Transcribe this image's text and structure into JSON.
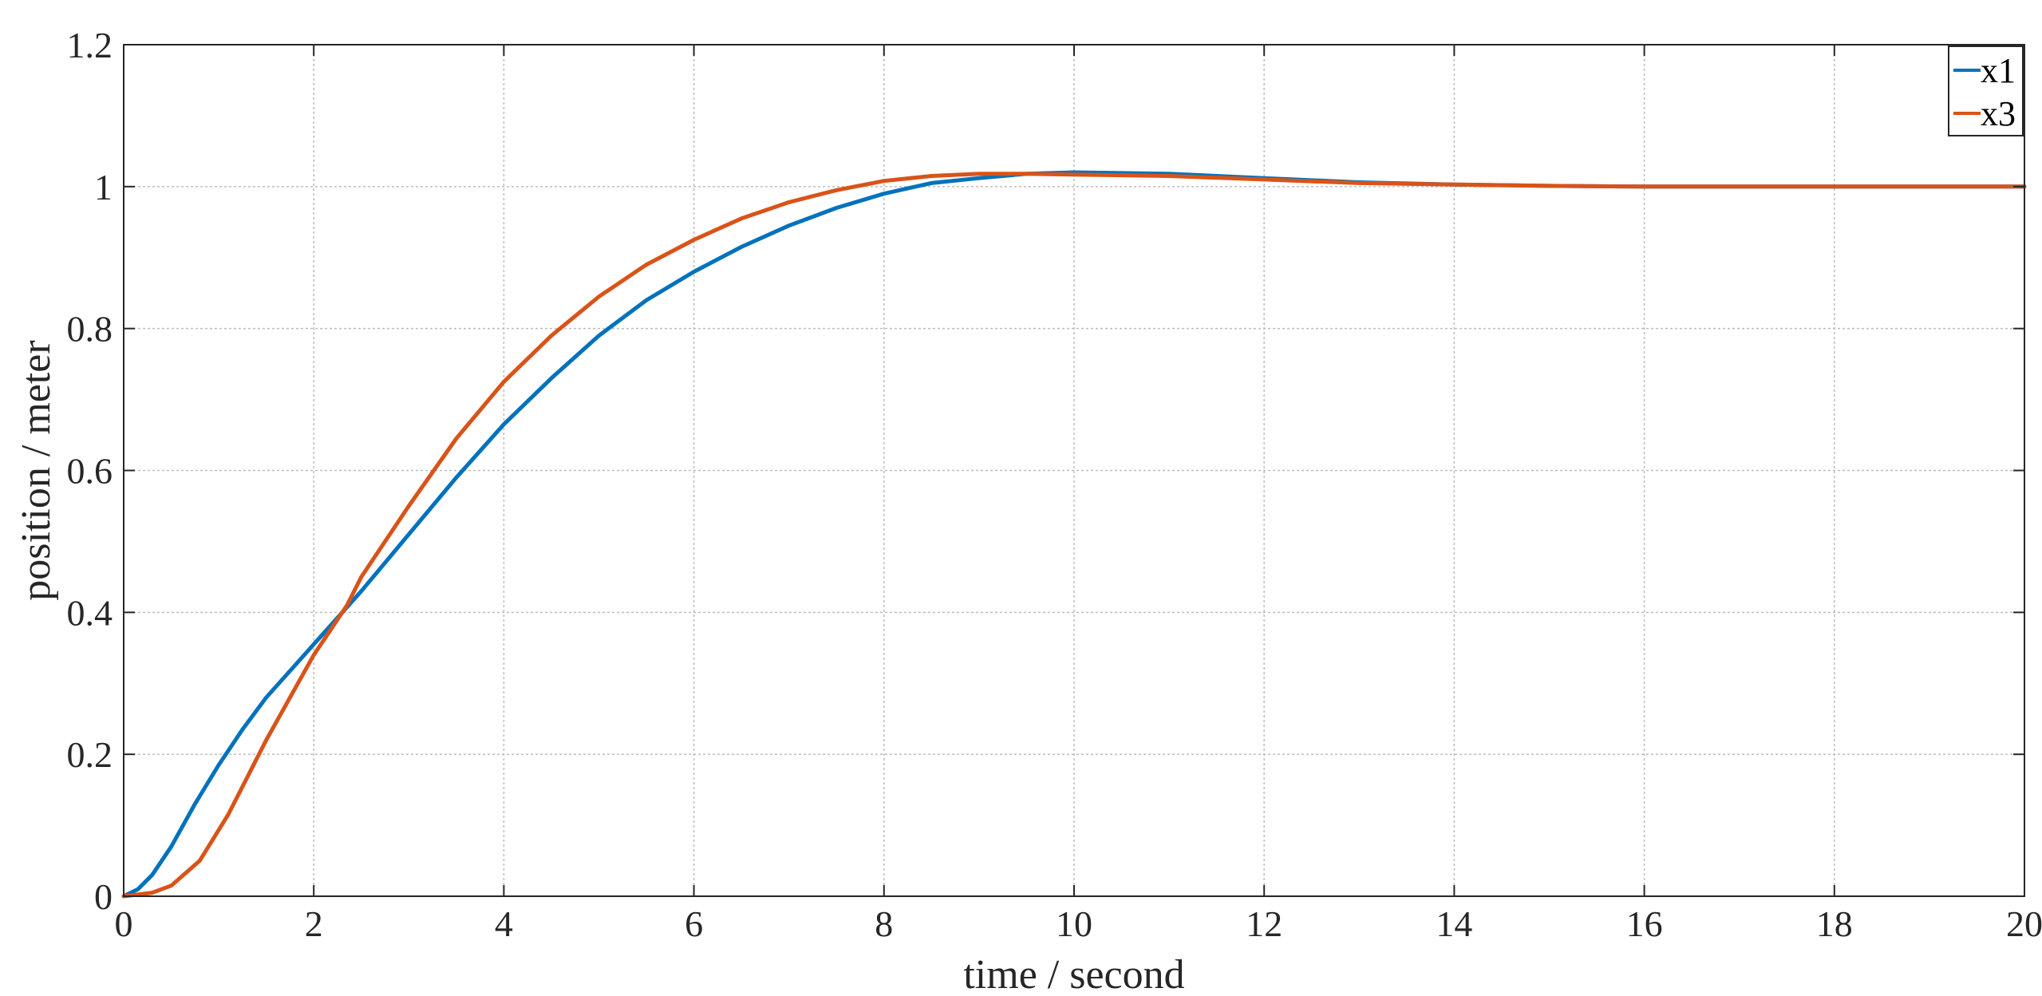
{
  "chart_data": {
    "type": "line",
    "title": "",
    "xlabel": "time / second",
    "ylabel": "position / meter",
    "xlim": [
      0,
      20
    ],
    "ylim": [
      0,
      1.2
    ],
    "xticks": [
      0,
      2,
      4,
      6,
      8,
      10,
      12,
      14,
      16,
      18,
      20
    ],
    "xtick_labels": [
      "0",
      "2",
      "4",
      "6",
      "8",
      "10",
      "12",
      "14",
      "16",
      "18",
      "20"
    ],
    "yticks": [
      0,
      0.2,
      0.4,
      0.6,
      0.8,
      1,
      1.2
    ],
    "ytick_labels": [
      "0",
      "0.2",
      "0.4",
      "0.6",
      "0.8",
      "1",
      "1.2"
    ],
    "grid": true,
    "legend_position": "top-right",
    "series": [
      {
        "name": "x1",
        "color": "#0072BD",
        "x": [
          0,
          0.15,
          0.3,
          0.5,
          0.75,
          1.0,
          1.25,
          1.5,
          2.0,
          2.5,
          3.0,
          3.5,
          4.0,
          4.5,
          5.0,
          5.5,
          6.0,
          6.5,
          7.0,
          7.5,
          8.0,
          8.5,
          9.0,
          9.5,
          10.0,
          11.0,
          12.0,
          13.0,
          14.0,
          15.0,
          16.0,
          17.0,
          18.0,
          19.0,
          20.0
        ],
        "y": [
          0,
          0.01,
          0.03,
          0.07,
          0.13,
          0.185,
          0.235,
          0.28,
          0.355,
          0.43,
          0.51,
          0.59,
          0.665,
          0.73,
          0.79,
          0.84,
          0.88,
          0.915,
          0.945,
          0.97,
          0.99,
          1.005,
          1.012,
          1.018,
          1.02,
          1.018,
          1.012,
          1.006,
          1.003,
          1.001,
          1.0,
          1.0,
          1.0,
          1.0,
          1.0
        ]
      },
      {
        "name": "x3",
        "color": "#D95319",
        "x": [
          0,
          0.3,
          0.5,
          0.8,
          1.1,
          1.5,
          2.0,
          2.35,
          2.5,
          3.0,
          3.5,
          4.0,
          4.5,
          5.0,
          5.5,
          6.0,
          6.5,
          7.0,
          7.5,
          8.0,
          8.5,
          9.0,
          9.5,
          10.0,
          11.0,
          12.0,
          13.0,
          14.0,
          15.0,
          16.0,
          17.0,
          18.0,
          19.0,
          20.0
        ],
        "y": [
          0,
          0.005,
          0.015,
          0.05,
          0.115,
          0.22,
          0.34,
          0.41,
          0.45,
          0.55,
          0.645,
          0.725,
          0.79,
          0.845,
          0.89,
          0.925,
          0.955,
          0.978,
          0.995,
          1.008,
          1.015,
          1.018,
          1.018,
          1.017,
          1.015,
          1.01,
          1.005,
          1.003,
          1.001,
          1.0,
          1.0,
          1.0,
          1.0,
          1.0
        ]
      }
    ]
  }
}
